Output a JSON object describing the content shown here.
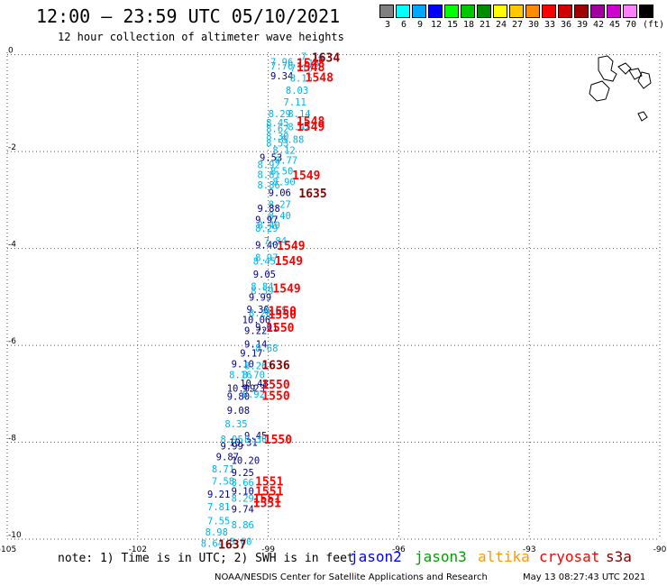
{
  "header": {
    "title": "12:00 – 23:59 UTC 05/10/2021",
    "subtitle": "12 hour collection of altimeter wave heights"
  },
  "color_scale": {
    "unit_label": "(ft)",
    "steps": [
      {
        "label": "3",
        "color": "#808080"
      },
      {
        "label": "6",
        "color": "#00ffff"
      },
      {
        "label": "9",
        "color": "#00a8ff"
      },
      {
        "label": "12",
        "color": "#0000ff"
      },
      {
        "label": "15",
        "color": "#00ff00"
      },
      {
        "label": "18",
        "color": "#00c800"
      },
      {
        "label": "21",
        "color": "#008c00"
      },
      {
        "label": "24",
        "color": "#ffff00"
      },
      {
        "label": "27",
        "color": "#ffc800"
      },
      {
        "label": "30",
        "color": "#ff8c00"
      },
      {
        "label": "33",
        "color": "#ff0000"
      },
      {
        "label": "36",
        "color": "#d00000"
      },
      {
        "label": "39",
        "color": "#a00000"
      },
      {
        "label": "42",
        "color": "#a000a0"
      },
      {
        "label": "45",
        "color": "#d000d0"
      },
      {
        "label": "70",
        "color": "#ff80ff"
      },
      {
        "label": "",
        "color": "#000000"
      }
    ]
  },
  "map": {
    "lon_ticks": [
      "-105",
      "-102",
      "-99",
      "-96",
      "-93",
      "-90"
    ],
    "lat_ticks": [
      "0",
      "-2",
      "-4",
      "-6",
      "-8",
      "-10"
    ],
    "lon_range": [
      -105,
      -90
    ],
    "lat_range": [
      -10,
      0.05
    ],
    "wave_colors": {
      "cyan": "#00b4e6",
      "navy": "#00008b"
    },
    "wave_heights": [
      {
        "text": "7.14",
        "lon": -98.25,
        "lat": -0.03,
        "c": "cyan"
      },
      {
        "text": "7.96",
        "lon": -98.95,
        "lat": -0.15,
        "c": "cyan"
      },
      {
        "text": "7.16",
        "lon": -98.35,
        "lat": -0.17,
        "c": "cyan"
      },
      {
        "text": "7.76",
        "lon": -98.95,
        "lat": -0.23,
        "c": "cyan"
      },
      {
        "text": "7.16",
        "lon": -98.5,
        "lat": -0.28,
        "c": "cyan"
      },
      {
        "text": "9.34",
        "lon": -98.95,
        "lat": -0.43,
        "c": "navy"
      },
      {
        "text": "8.15",
        "lon": -98.5,
        "lat": -0.48,
        "c": "cyan"
      },
      {
        "text": "8.03",
        "lon": -98.6,
        "lat": -0.73,
        "c": "cyan"
      },
      {
        "text": "7.11",
        "lon": -98.65,
        "lat": -0.97,
        "c": "cyan"
      },
      {
        "text": "8.14",
        "lon": -98.55,
        "lat": -1.22,
        "c": "cyan"
      },
      {
        "text": "8.29",
        "lon": -99.0,
        "lat": -1.22,
        "c": "cyan"
      },
      {
        "text": "8.45",
        "lon": -99.05,
        "lat": -1.4,
        "c": "cyan"
      },
      {
        "text": "8.62",
        "lon": -99.05,
        "lat": -1.52,
        "c": "cyan"
      },
      {
        "text": "8.42",
        "lon": -98.55,
        "lat": -1.49,
        "c": "cyan"
      },
      {
        "text": "8.30",
        "lon": -99.05,
        "lat": -1.68,
        "c": "cyan"
      },
      {
        "text": "8.88",
        "lon": -98.7,
        "lat": -1.75,
        "c": "cyan"
      },
      {
        "text": "8.53",
        "lon": -99.05,
        "lat": -1.82,
        "c": "cyan"
      },
      {
        "text": "8.12",
        "lon": -98.9,
        "lat": -1.97,
        "c": "cyan"
      },
      {
        "text": "9.53",
        "lon": -99.2,
        "lat": -2.12,
        "c": "navy"
      },
      {
        "text": "8.77",
        "lon": -98.85,
        "lat": -2.17,
        "c": "cyan"
      },
      {
        "text": "8.92",
        "lon": -99.25,
        "lat": -2.27,
        "c": "cyan"
      },
      {
        "text": "8.50",
        "lon": -98.95,
        "lat": -2.4,
        "c": "cyan"
      },
      {
        "text": "8.81",
        "lon": -99.25,
        "lat": -2.47,
        "c": "cyan"
      },
      {
        "text": "8.90",
        "lon": -98.9,
        "lat": -2.62,
        "c": "cyan"
      },
      {
        "text": "8.86",
        "lon": -99.25,
        "lat": -2.69,
        "c": "cyan"
      },
      {
        "text": "9.06",
        "lon": -99.0,
        "lat": -2.84,
        "c": "navy"
      },
      {
        "text": "8.27",
        "lon": -99.0,
        "lat": -3.09,
        "c": "cyan"
      },
      {
        "text": "9.88",
        "lon": -99.25,
        "lat": -3.17,
        "c": "navy"
      },
      {
        "text": "8.40",
        "lon": -99.0,
        "lat": -3.32,
        "c": "cyan"
      },
      {
        "text": "9.97",
        "lon": -99.3,
        "lat": -3.4,
        "c": "navy"
      },
      {
        "text": "8.40",
        "lon": -99.25,
        "lat": -3.51,
        "c": "cyan"
      },
      {
        "text": "8.29",
        "lon": -99.3,
        "lat": -3.58,
        "c": "cyan"
      },
      {
        "text": "7.84",
        "lon": -99.1,
        "lat": -3.84,
        "c": "cyan"
      },
      {
        "text": "9.40",
        "lon": -99.3,
        "lat": -3.92,
        "c": "navy"
      },
      {
        "text": "8.97",
        "lon": -99.3,
        "lat": -4.18,
        "c": "cyan"
      },
      {
        "text": "8.45",
        "lon": -99.35,
        "lat": -4.26,
        "c": "cyan"
      },
      {
        "text": "9.05",
        "lon": -99.35,
        "lat": -4.53,
        "c": "navy"
      },
      {
        "text": "8.84",
        "lon": -99.4,
        "lat": -4.78,
        "c": "cyan"
      },
      {
        "text": "8.59",
        "lon": -99.4,
        "lat": -4.87,
        "c": "cyan"
      },
      {
        "text": "9.99",
        "lon": -99.45,
        "lat": -5.0,
        "c": "navy"
      },
      {
        "text": "9.30",
        "lon": -99.5,
        "lat": -5.25,
        "c": "navy"
      },
      {
        "text": "8.65",
        "lon": -99.1,
        "lat": -5.28,
        "c": "cyan"
      },
      {
        "text": "8.28",
        "lon": -99.45,
        "lat": -5.33,
        "c": "cyan"
      },
      {
        "text": "10.06",
        "lon": -99.6,
        "lat": -5.47,
        "c": "navy"
      },
      {
        "text": "9.01",
        "lon": -99.3,
        "lat": -5.62,
        "c": "navy"
      },
      {
        "text": "9.22",
        "lon": -99.55,
        "lat": -5.69,
        "c": "navy"
      },
      {
        "text": "9.14",
        "lon": -99.55,
        "lat": -5.97,
        "c": "navy"
      },
      {
        "text": "8.68",
        "lon": -99.3,
        "lat": -6.05,
        "c": "cyan"
      },
      {
        "text": "9.17",
        "lon": -99.65,
        "lat": -6.16,
        "c": "navy"
      },
      {
        "text": "9.10",
        "lon": -99.85,
        "lat": -6.38,
        "c": "navy"
      },
      {
        "text": "8.26",
        "lon": -99.55,
        "lat": -6.42,
        "c": "cyan"
      },
      {
        "text": "8.16",
        "lon": -99.9,
        "lat": -6.6,
        "c": "cyan"
      },
      {
        "text": "8.70",
        "lon": -99.6,
        "lat": -6.6,
        "c": "cyan"
      },
      {
        "text": "10.48",
        "lon": -99.65,
        "lat": -6.78,
        "c": "navy"
      },
      {
        "text": "10.09",
        "lon": -99.95,
        "lat": -6.88,
        "c": "navy"
      },
      {
        "text": "9.23",
        "lon": -99.6,
        "lat": -6.88,
        "c": "navy"
      },
      {
        "text": "8.92",
        "lon": -99.6,
        "lat": -7.0,
        "c": "cyan"
      },
      {
        "text": "9.80",
        "lon": -99.95,
        "lat": -7.05,
        "c": "navy"
      },
      {
        "text": "9.08",
        "lon": -99.95,
        "lat": -7.34,
        "c": "navy"
      },
      {
        "text": "8.35",
        "lon": -100.0,
        "lat": -7.62,
        "c": "cyan"
      },
      {
        "text": "9.45",
        "lon": -99.55,
        "lat": -7.86,
        "c": "navy"
      },
      {
        "text": "8.95",
        "lon": -100.1,
        "lat": -7.93,
        "c": "cyan"
      },
      {
        "text": "8.38",
        "lon": -99.55,
        "lat": -7.93,
        "c": "cyan"
      },
      {
        "text": "10.31",
        "lon": -99.9,
        "lat": -8.0,
        "c": "navy"
      },
      {
        "text": "9.99",
        "lon": -100.1,
        "lat": -8.07,
        "c": "navy"
      },
      {
        "text": "10.20",
        "lon": -99.85,
        "lat": -8.37,
        "c": "navy"
      },
      {
        "text": "9.87",
        "lon": -100.2,
        "lat": -8.3,
        "c": "navy"
      },
      {
        "text": "8.71",
        "lon": -100.3,
        "lat": -8.55,
        "c": "cyan"
      },
      {
        "text": "9.25",
        "lon": -99.85,
        "lat": -8.62,
        "c": "navy"
      },
      {
        "text": "7.58",
        "lon": -100.3,
        "lat": -8.8,
        "c": "cyan"
      },
      {
        "text": "8.66",
        "lon": -99.85,
        "lat": -8.83,
        "c": "cyan"
      },
      {
        "text": "9.21",
        "lon": -100.4,
        "lat": -9.07,
        "c": "navy"
      },
      {
        "text": "9.10",
        "lon": -99.85,
        "lat": -9.0,
        "c": "navy"
      },
      {
        "text": "8.29",
        "lon": -99.85,
        "lat": -9.15,
        "c": "cyan"
      },
      {
        "text": "7.81",
        "lon": -100.4,
        "lat": -9.33,
        "c": "cyan"
      },
      {
        "text": "9.74",
        "lon": -99.85,
        "lat": -9.38,
        "c": "navy"
      },
      {
        "text": "7.55",
        "lon": -100.4,
        "lat": -9.62,
        "c": "cyan"
      },
      {
        "text": "8.86",
        "lon": -99.85,
        "lat": -9.7,
        "c": "cyan"
      },
      {
        "text": "8.98",
        "lon": -100.45,
        "lat": -9.85,
        "c": "cyan"
      },
      {
        "text": "8.64",
        "lon": -100.55,
        "lat": -10.08,
        "c": "cyan"
      },
      {
        "text": "8.60",
        "lon": -99.9,
        "lat": -10.05,
        "c": "cyan"
      }
    ],
    "pass_labels": [
      {
        "text": "1634",
        "lon": -98.0,
        "lat": -0.05,
        "color": "#8b0000"
      },
      {
        "text": "1548",
        "lon": -98.35,
        "lat": -0.16,
        "color": "#ff0000"
      },
      {
        "text": "1548",
        "lon": -98.35,
        "lat": -0.25,
        "color": "#ff0000"
      },
      {
        "text": "1548",
        "lon": -98.15,
        "lat": -0.46,
        "color": "#ff0000"
      },
      {
        "text": "1548",
        "lon": -98.35,
        "lat": -1.36,
        "color": "#ff0000"
      },
      {
        "text": "1549",
        "lon": -98.35,
        "lat": -1.48,
        "color": "#ff0000"
      },
      {
        "text": "1549",
        "lon": -98.45,
        "lat": -2.48,
        "color": "#ff0000"
      },
      {
        "text": "1635",
        "lon": -98.3,
        "lat": -2.85,
        "color": "#8b0000"
      },
      {
        "text": "1549",
        "lon": -98.8,
        "lat": -3.93,
        "color": "#ff0000"
      },
      {
        "text": "1549",
        "lon": -98.85,
        "lat": -4.25,
        "color": "#ff0000"
      },
      {
        "text": "1549",
        "lon": -98.9,
        "lat": -4.82,
        "color": "#ff0000"
      },
      {
        "text": "1550",
        "lon": -99.0,
        "lat": -5.28,
        "color": "#ff0000"
      },
      {
        "text": "1550",
        "lon": -99.0,
        "lat": -5.36,
        "color": "#ff0000"
      },
      {
        "text": "1550",
        "lon": -99.05,
        "lat": -5.63,
        "color": "#ff0000"
      },
      {
        "text": "1636",
        "lon": -99.15,
        "lat": -6.4,
        "color": "#8b0000"
      },
      {
        "text": "1550",
        "lon": -99.15,
        "lat": -6.8,
        "color": "#ff0000"
      },
      {
        "text": "1550",
        "lon": -99.15,
        "lat": -7.03,
        "color": "#ff0000"
      },
      {
        "text": "1550",
        "lon": -99.1,
        "lat": -7.93,
        "color": "#ff0000"
      },
      {
        "text": "1551",
        "lon": -99.3,
        "lat": -8.8,
        "color": "#ff0000"
      },
      {
        "text": "1551",
        "lon": -99.3,
        "lat": -9.0,
        "color": "#ff0000"
      },
      {
        "text": "1551",
        "lon": -99.35,
        "lat": -9.15,
        "color": "#ff0000"
      },
      {
        "text": "1551",
        "lon": -99.35,
        "lat": -9.25,
        "color": "#ff0000"
      },
      {
        "text": "1637",
        "lon": -100.15,
        "lat": -10.1,
        "color": "#8b0000"
      }
    ]
  },
  "footer": {
    "note": "note: 1) Time is in UTC; 2) SWH is in feet",
    "satellites": [
      {
        "name": "jason2",
        "color": "#0000ff"
      },
      {
        "name": "jason3",
        "color": "#00a000"
      },
      {
        "name": "altika",
        "color": "#ff9900"
      },
      {
        "name": "cryosat",
        "color": "#ff0000"
      },
      {
        "name": "s3a",
        "color": "#800000"
      }
    ],
    "credit": "NOAA/NESDIS Center for Satellite Applications and Research",
    "timestamp": "May 13 08:27:43 UTC 2021"
  }
}
